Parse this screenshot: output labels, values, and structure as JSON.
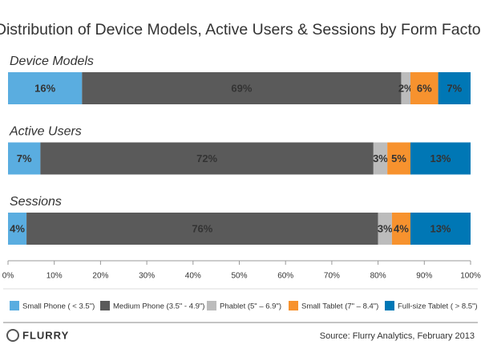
{
  "chart_data": {
    "type": "bar",
    "orientation": "horizontal",
    "stacked": true,
    "title": "Distribution of Device Models, Active Users & Sessions by Form Factor",
    "categories": [
      "Device Models",
      "Active Users",
      "Sessions"
    ],
    "series": [
      {
        "name": "Small Phone ( < 3.5\")",
        "color": "#5aade0",
        "values": [
          16,
          7,
          4
        ],
        "value_labels": [
          "16%",
          "7%",
          "4%"
        ]
      },
      {
        "name": "Medium Phone (3.5\" - 4.9\")",
        "color": "#5a5a5a",
        "values": [
          69,
          72,
          76
        ],
        "value_labels": [
          "69%",
          "72%",
          "76%"
        ]
      },
      {
        "name": "Phablet (5\" – 6.9\")",
        "color": "#bcbcbc",
        "values": [
          2,
          3,
          3
        ],
        "value_labels": [
          "2%",
          "3%",
          "3%"
        ]
      },
      {
        "name": "Small Tablet (7\" – 8.4\")",
        "color": "#f7922e",
        "values": [
          6,
          5,
          4
        ],
        "value_labels": [
          "6%",
          "5%",
          "4%"
        ]
      },
      {
        "name": "Full-size Tablet ( > 8.5\")",
        "color": "#0077b5",
        "values": [
          7,
          13,
          13
        ],
        "value_labels": [
          "7%",
          "13%",
          "13%"
        ]
      }
    ],
    "xlim": [
      0,
      100
    ],
    "xticks": [
      {
        "value": 0,
        "label": "0%"
      },
      {
        "value": 10,
        "label": "10%"
      },
      {
        "value": 20,
        "label": "20%"
      },
      {
        "value": 30,
        "label": "30%"
      },
      {
        "value": 40,
        "label": "40%"
      },
      {
        "value": 50,
        "label": "50%"
      },
      {
        "value": 60,
        "label": "60%"
      },
      {
        "value": 70,
        "label": "70%"
      },
      {
        "value": 80,
        "label": "80%"
      },
      {
        "value": 90,
        "label": "90%"
      },
      {
        "value": 100,
        "label": "100%"
      }
    ],
    "legend": "bottom",
    "logo": "FLURRY",
    "source": "Source: Flurry Analytics, February 2013"
  }
}
